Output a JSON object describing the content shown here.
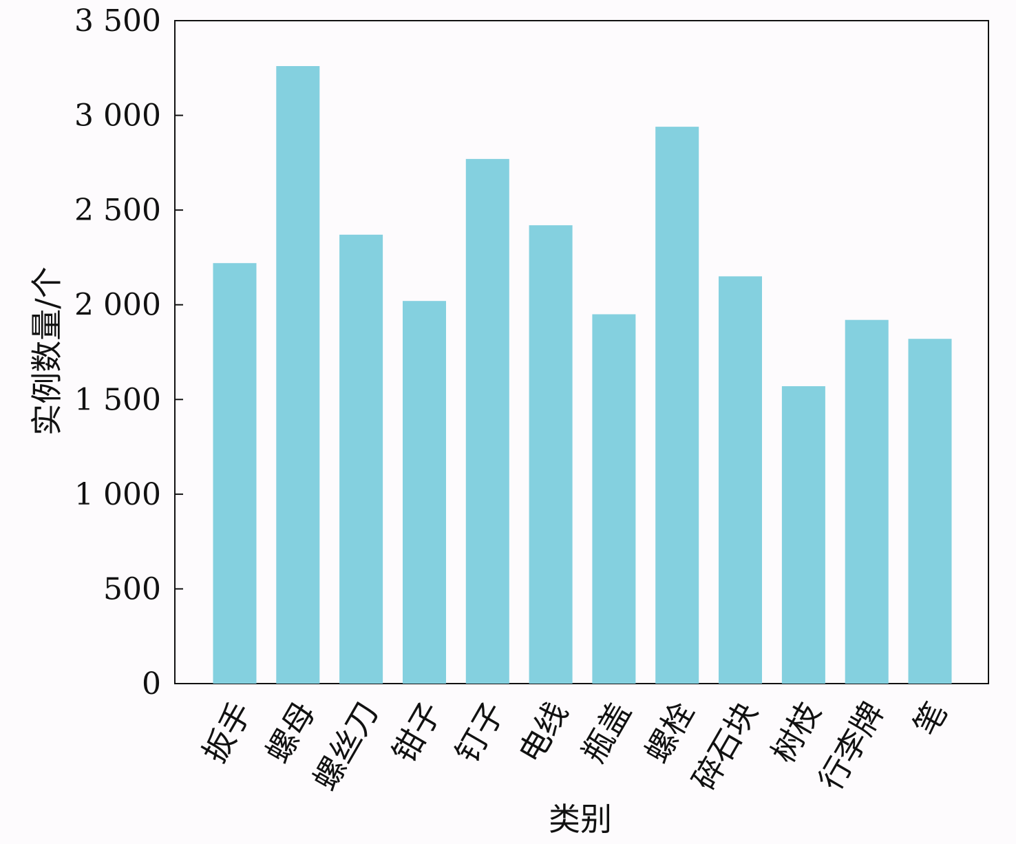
{
  "chart_data": {
    "type": "bar",
    "title": "",
    "xlabel": "类别",
    "ylabel": "实例数量/个",
    "ylim": [
      0,
      3500
    ],
    "yticks": [
      0,
      500,
      1000,
      1500,
      2000,
      2500,
      3000,
      3500
    ],
    "ytick_labels": [
      "0",
      "500",
      "1 000",
      "1 500",
      "2 000",
      "2 500",
      "3 000",
      "3 500"
    ],
    "categories": [
      "扳手",
      "螺母",
      "螺丝刀",
      "钳子",
      "钉子",
      "电线",
      "瓶盖",
      "螺栓",
      "碎石块",
      "树枝",
      "行李牌",
      "笔"
    ],
    "values": [
      2220,
      3260,
      2370,
      2020,
      2770,
      2420,
      1950,
      2940,
      2150,
      1570,
      1920,
      1820
    ],
    "bar_color": "#84d0df",
    "grid": false,
    "legend": "none"
  }
}
